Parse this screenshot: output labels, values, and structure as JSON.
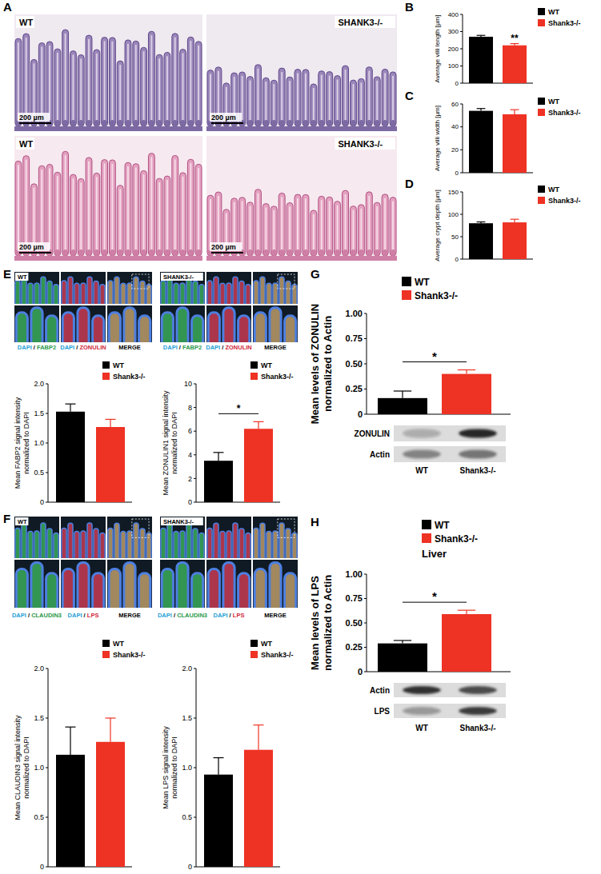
{
  "panel_labels": [
    "A",
    "B",
    "C",
    "D",
    "E",
    "F",
    "G",
    "H"
  ],
  "histology": [
    {
      "label": "WT",
      "scale_bar": "200 µm"
    },
    {
      "label": "SHANK3-/-",
      "scale_bar": "200 µm"
    },
    {
      "label": "WT",
      "scale_bar": "200 µm"
    },
    {
      "label": "SHANK3-/-",
      "scale_bar": "200 µm"
    }
  ],
  "immunofluorescence": [
    {
      "groups": [
        {
          "label": "WT",
          "channels": [
            "DAPI / FABP2",
            "DAPI / ZONULIN",
            "MERGE"
          ]
        },
        {
          "label": "SHANK3-/-",
          "channels": [
            "DAPI / FABP2",
            "DAPI / ZONULIN",
            "MERGE"
          ]
        }
      ]
    },
    {
      "groups": [
        {
          "label": "WT",
          "channels": [
            "DAPI / CLAUDIN3",
            "DAPI / LPS",
            "MERGE"
          ]
        },
        {
          "label": "SHANK3-/-",
          "channels": [
            "DAPI / CLAUDIN3",
            "DAPI / LPS",
            "MERGE"
          ]
        }
      ]
    }
  ],
  "blots": [
    {
      "rows": [
        "ZONULIN",
        "Actin"
      ],
      "lanes": [
        "WT",
        "Shank3-/-"
      ]
    },
    {
      "rows": [
        "Actin",
        "LPS"
      ],
      "lanes": [
        "WT",
        "Shank3-/-"
      ]
    }
  ],
  "chart_data": [
    {
      "type": "bar",
      "ylabel": "Average villi length [µm]",
      "ylim": [
        0,
        400
      ],
      "yticks": [
        0,
        100,
        200,
        300,
        400
      ],
      "grid": false,
      "legend": "top-right",
      "tick_labels": "y",
      "annotation": "**",
      "series": [
        {
          "name": "WT",
          "color": "#000000",
          "values": [
            270
          ],
          "errors": [
            8
          ]
        },
        {
          "name": "Shank3-/-",
          "color": "#ee3224",
          "values": [
            220
          ],
          "errors": [
            10
          ]
        }
      ]
    },
    {
      "type": "bar",
      "ylabel": "Average villi width [µm]",
      "ylim": [
        0,
        60
      ],
      "yticks": [
        0,
        20,
        40,
        60
      ],
      "grid": false,
      "legend": "top-right",
      "tick_labels": "y",
      "series": [
        {
          "name": "WT",
          "color": "#000000",
          "values": [
            54
          ],
          "errors": [
            2
          ]
        },
        {
          "name": "Shank3-/-",
          "color": "#ee3224",
          "values": [
            51
          ],
          "errors": [
            4
          ]
        }
      ]
    },
    {
      "type": "bar",
      "ylabel": "Average crypt depth [µm]",
      "ylim": [
        0,
        150
      ],
      "yticks": [
        0,
        50,
        100,
        150
      ],
      "grid": false,
      "legend": "top-right",
      "tick_labels": "y",
      "series": [
        {
          "name": "WT",
          "color": "#000000",
          "values": [
            80
          ],
          "errors": [
            3
          ]
        },
        {
          "name": "Shank3-/-",
          "color": "#ee3224",
          "values": [
            82
          ],
          "errors": [
            7
          ]
        }
      ]
    },
    {
      "type": "bar",
      "ylabel": "Mean FABP2 signal intensity normalized to DAPI",
      "ylim": [
        0,
        2
      ],
      "yticks": [
        0,
        0.5,
        {
          "value": 1,
          "label": "1.0"
        },
        1.5,
        {
          "value": 2,
          "label": "2.0"
        }
      ],
      "grid": false,
      "legend": "top-right",
      "tick_labels": "y",
      "series": [
        {
          "name": "WT",
          "color": "#000000",
          "values": [
            1.53
          ],
          "errors": [
            0.13
          ]
        },
        {
          "name": "Shank3-/-",
          "color": "#ee3224",
          "values": [
            1.27
          ],
          "errors": [
            0.13
          ]
        }
      ]
    },
    {
      "type": "bar",
      "ylabel": "Mean ZONULIN1 signal intensity normalized to DAPI",
      "ylim": [
        0,
        10
      ],
      "yticks": [
        0,
        2,
        4,
        6,
        8,
        10
      ],
      "grid": false,
      "legend": "top-right",
      "tick_labels": "y",
      "annotation": "*",
      "series": [
        {
          "name": "WT",
          "color": "#000000",
          "values": [
            3.5
          ],
          "errors": [
            0.7
          ]
        },
        {
          "name": "Shank3-/-",
          "color": "#ee3224",
          "values": [
            6.2
          ],
          "errors": [
            0.6
          ]
        }
      ]
    },
    {
      "type": "bar",
      "ylabel": "Mean levels of ZONULIN normalized to Actin",
      "ylim": [
        0,
        1
      ],
      "yticks": [
        0,
        0.25,
        {
          "value": 0.5,
          "label": "0.50"
        },
        0.75,
        {
          "value": 1,
          "label": "1.00"
        }
      ],
      "grid": false,
      "legend": "top-right",
      "tick_labels": "y",
      "annotation": "*",
      "series": [
        {
          "name": "WT",
          "color": "#000000",
          "values": [
            0.16
          ],
          "errors": [
            0.07
          ]
        },
        {
          "name": "Shank3-/-",
          "color": "#ee3224",
          "values": [
            0.4
          ],
          "errors": [
            0.04
          ]
        }
      ]
    },
    {
      "type": "bar",
      "ylabel": "Mean CLAUDIN3 signal intensity normalized to DAPI",
      "ylim": [
        0,
        2
      ],
      "yticks": [
        0,
        0.5,
        {
          "value": 1,
          "label": "1.0"
        },
        1.5,
        {
          "value": 2,
          "label": "2.0"
        }
      ],
      "grid": false,
      "legend": "top-right",
      "tick_labels": "y",
      "series": [
        {
          "name": "WT",
          "color": "#000000",
          "values": [
            1.13
          ],
          "errors": [
            0.28
          ]
        },
        {
          "name": "Shank3-/-",
          "color": "#ee3224",
          "values": [
            1.26
          ],
          "errors": [
            0.24
          ]
        }
      ]
    },
    {
      "type": "bar",
      "ylabel": "Mean LPS signal intensity normalized to DAPI",
      "ylim": [
        0,
        2
      ],
      "yticks": [
        0,
        0.5,
        {
          "value": 1,
          "label": "1.0"
        },
        1.5,
        {
          "value": 2,
          "label": "2.0"
        }
      ],
      "grid": false,
      "legend": "top-right",
      "tick_labels": "y",
      "series": [
        {
          "name": "WT",
          "color": "#000000",
          "values": [
            0.93
          ],
          "errors": [
            0.17
          ]
        },
        {
          "name": "Shank3-/-",
          "color": "#ee3224",
          "values": [
            1.18
          ],
          "errors": [
            0.25
          ]
        }
      ]
    },
    {
      "type": "bar",
      "title": "Liver",
      "ylabel": "Mean levels of LPS normalized to Actin",
      "ylim": [
        0,
        1
      ],
      "yticks": [
        0,
        0.25,
        {
          "value": 0.5,
          "label": "0.50"
        },
        0.75,
        {
          "value": 1,
          "label": "1.00"
        }
      ],
      "grid": false,
      "legend": "top-right",
      "tick_labels": "y",
      "annotation": "*",
      "series": [
        {
          "name": "WT",
          "color": "#000000",
          "values": [
            0.29
          ],
          "errors": [
            0.03
          ]
        },
        {
          "name": "Shank3-/-",
          "color": "#ee3224",
          "values": [
            0.59
          ],
          "errors": [
            0.04
          ]
        }
      ]
    }
  ]
}
